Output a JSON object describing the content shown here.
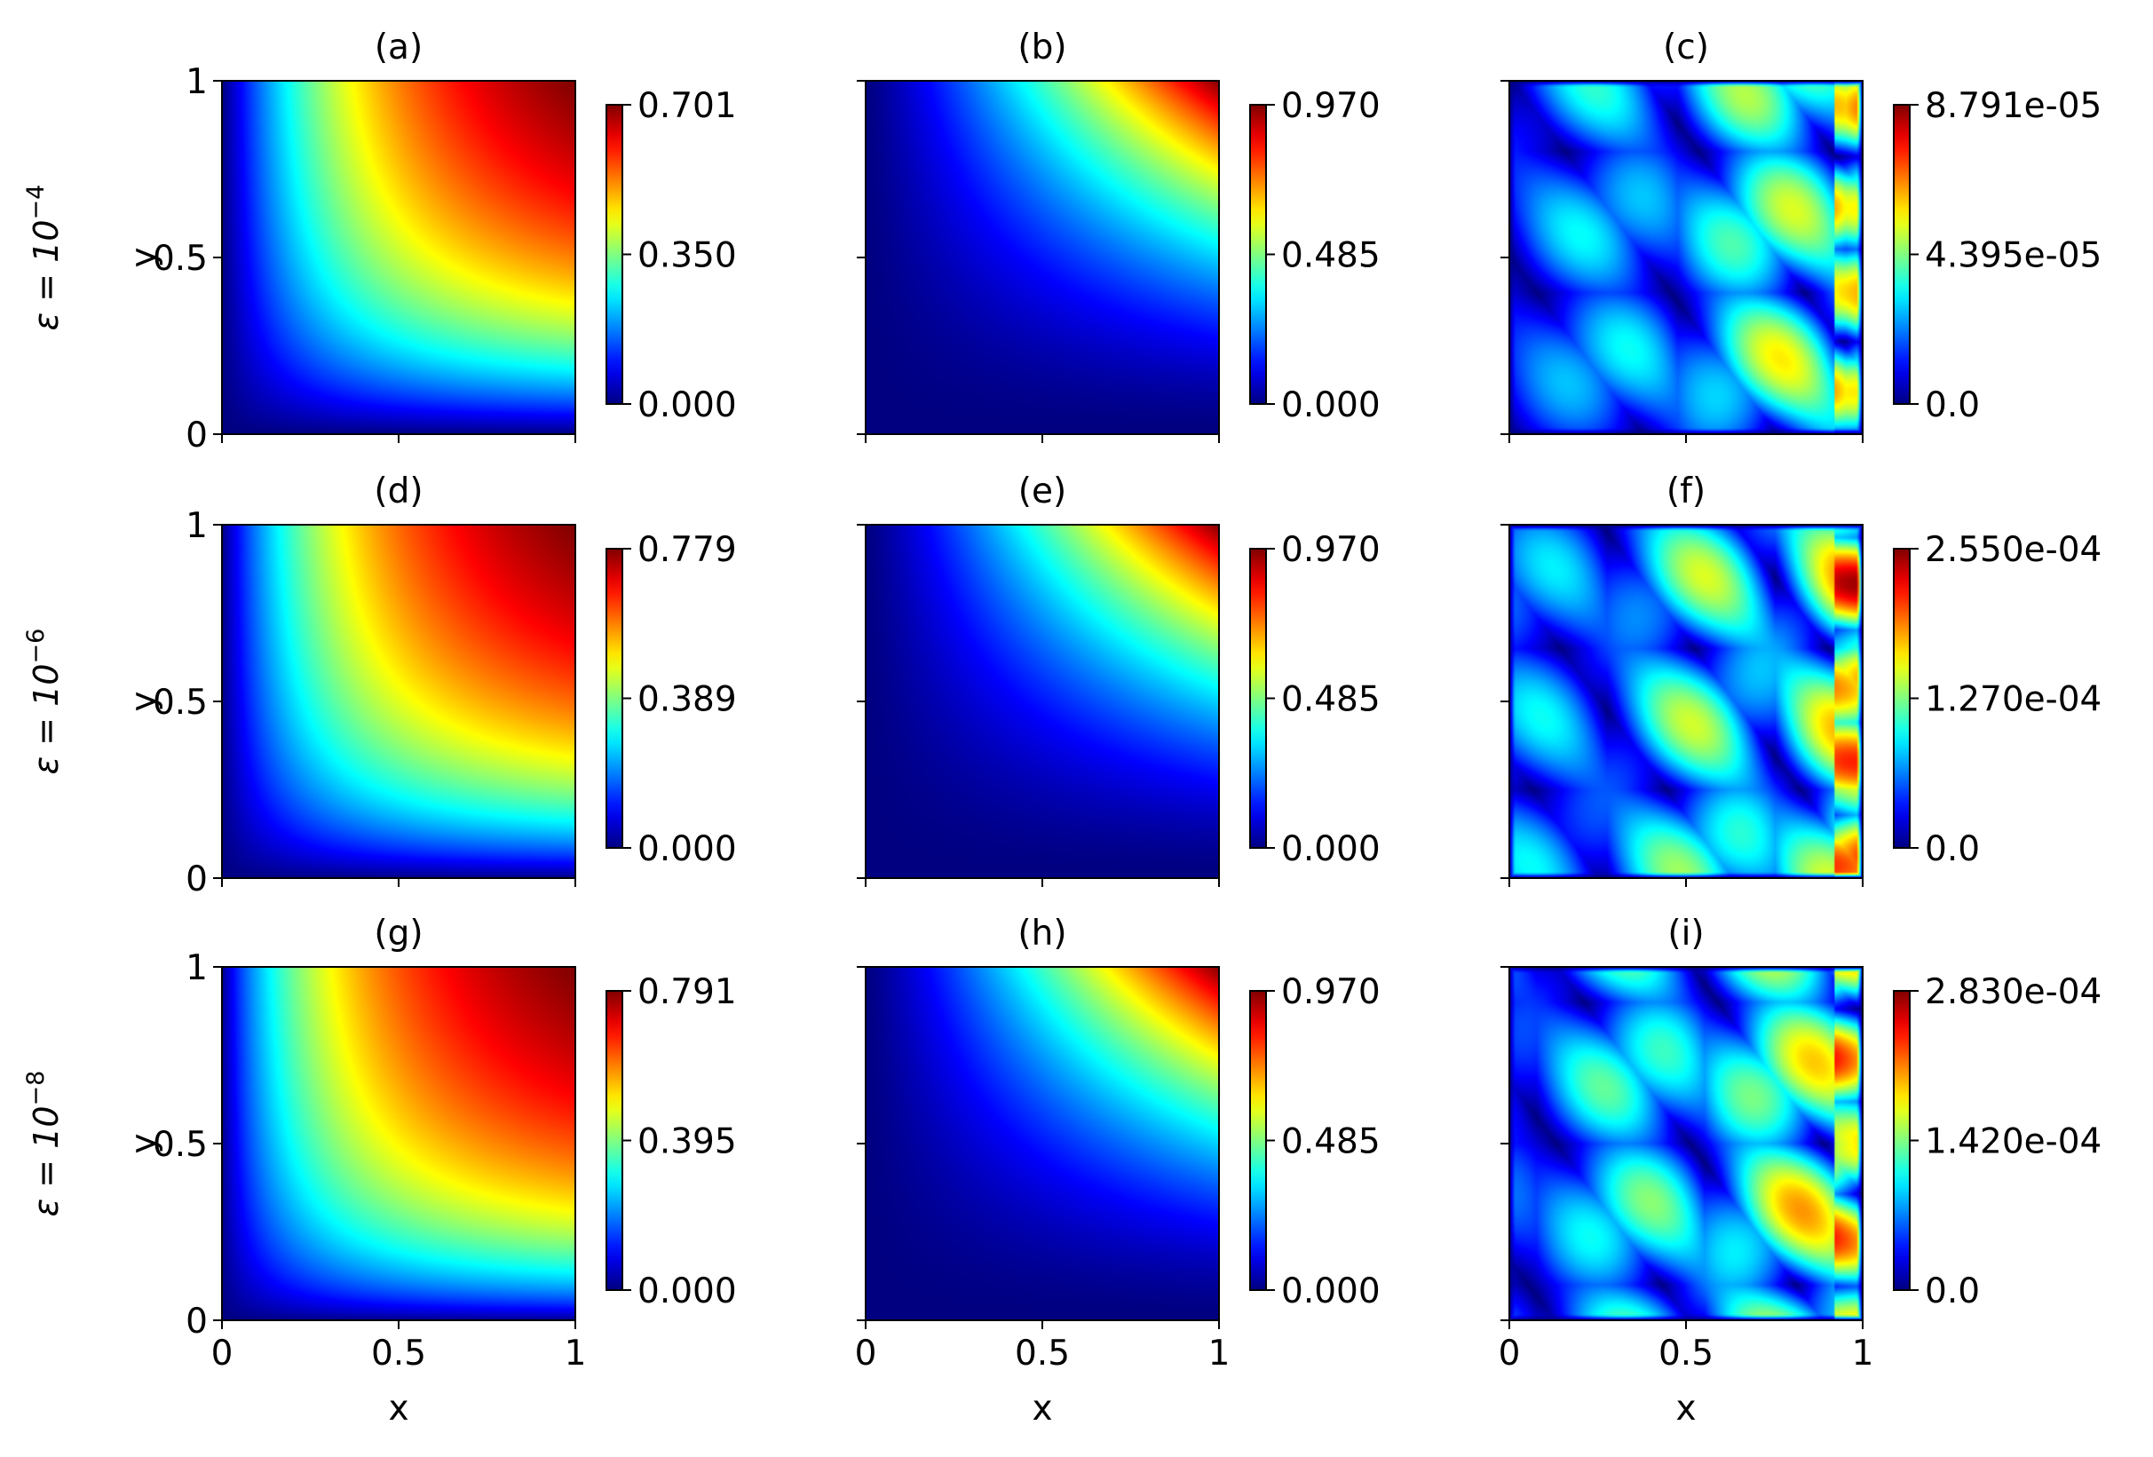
{
  "figure": {
    "row_labels": [
      "ε = 10",
      "ε = 10",
      "ε = 10"
    ],
    "row_label_exponents": [
      "−4",
      "−6",
      "−8"
    ],
    "xlabel": "x",
    "ylabel": "y"
  },
  "colormap": "jet",
  "chart_data": [
    {
      "type": "heatmap",
      "title": "(a)",
      "field": "exact",
      "row": 0,
      "col": 0,
      "xlim": [
        0,
        1
      ],
      "ylim": [
        0,
        1
      ],
      "x_ticks": [
        "0",
        "0.5",
        "1"
      ],
      "y_ticks": [
        "0",
        "0.5",
        "1"
      ],
      "colorbar_ticks": [
        "0.000",
        "0.350",
        "0.701"
      ],
      "vmin": 0,
      "vmax": 0.701
    },
    {
      "type": "heatmap",
      "title": "(b)",
      "field": "pred",
      "row": 0,
      "col": 1,
      "xlim": [
        0,
        1
      ],
      "ylim": [
        0,
        1
      ],
      "x_ticks": [
        "0",
        "0.5",
        "1"
      ],
      "y_ticks": [
        "0",
        "0.5",
        "1"
      ],
      "colorbar_ticks": [
        "0.000",
        "0.485",
        "0.970"
      ],
      "vmin": 0,
      "vmax": 0.97
    },
    {
      "type": "heatmap",
      "title": "(c)",
      "field": "error",
      "row": 0,
      "col": 2,
      "xlim": [
        0,
        1
      ],
      "ylim": [
        0,
        1
      ],
      "x_ticks": [
        "0",
        "0.5",
        "1"
      ],
      "y_ticks": [
        "0",
        "0.5",
        "1"
      ],
      "colorbar_ticks": [
        "0.0",
        "4.395e-05",
        "8.791e-05"
      ],
      "vmin": 0,
      "vmax": 8.791e-05
    },
    {
      "type": "heatmap",
      "title": "(d)",
      "field": "exact",
      "row": 1,
      "col": 0,
      "xlim": [
        0,
        1
      ],
      "ylim": [
        0,
        1
      ],
      "x_ticks": [
        "0",
        "0.5",
        "1"
      ],
      "y_ticks": [
        "0",
        "0.5",
        "1"
      ],
      "colorbar_ticks": [
        "0.000",
        "0.389",
        "0.779"
      ],
      "vmin": 0,
      "vmax": 0.779
    },
    {
      "type": "heatmap",
      "title": "(e)",
      "field": "pred",
      "row": 1,
      "col": 1,
      "xlim": [
        0,
        1
      ],
      "ylim": [
        0,
        1
      ],
      "x_ticks": [
        "0",
        "0.5",
        "1"
      ],
      "y_ticks": [
        "0",
        "0.5",
        "1"
      ],
      "colorbar_ticks": [
        "0.000",
        "0.485",
        "0.970"
      ],
      "vmin": 0,
      "vmax": 0.97
    },
    {
      "type": "heatmap",
      "title": "(f)",
      "field": "error",
      "row": 1,
      "col": 2,
      "xlim": [
        0,
        1
      ],
      "ylim": [
        0,
        1
      ],
      "x_ticks": [
        "0",
        "0.5",
        "1"
      ],
      "y_ticks": [
        "0",
        "0.5",
        "1"
      ],
      "colorbar_ticks": [
        "0.0",
        "1.270e-04",
        "2.550e-04"
      ],
      "vmin": 0,
      "vmax": 0.000255
    },
    {
      "type": "heatmap",
      "title": "(g)",
      "field": "exact",
      "row": 2,
      "col": 0,
      "xlim": [
        0,
        1
      ],
      "ylim": [
        0,
        1
      ],
      "x_ticks": [
        "0",
        "0.5",
        "1"
      ],
      "y_ticks": [
        "0",
        "0.5",
        "1"
      ],
      "colorbar_ticks": [
        "0.000",
        "0.395",
        "0.791"
      ],
      "vmin": 0,
      "vmax": 0.791
    },
    {
      "type": "heatmap",
      "title": "(h)",
      "field": "pred",
      "row": 2,
      "col": 1,
      "xlim": [
        0,
        1
      ],
      "ylim": [
        0,
        1
      ],
      "x_ticks": [
        "0",
        "0.5",
        "1"
      ],
      "y_ticks": [
        "0",
        "0.5",
        "1"
      ],
      "colorbar_ticks": [
        "0.000",
        "0.485",
        "0.970"
      ],
      "vmin": 0,
      "vmax": 0.97
    },
    {
      "type": "heatmap",
      "title": "(i)",
      "field": "error",
      "row": 2,
      "col": 2,
      "xlim": [
        0,
        1
      ],
      "ylim": [
        0,
        1
      ],
      "x_ticks": [
        "0",
        "0.5",
        "1"
      ],
      "y_ticks": [
        "0",
        "0.5",
        "1"
      ],
      "colorbar_ticks": [
        "0.0",
        "1.420e-04",
        "2.830e-04"
      ],
      "vmin": 0,
      "vmax": 0.000283
    }
  ]
}
